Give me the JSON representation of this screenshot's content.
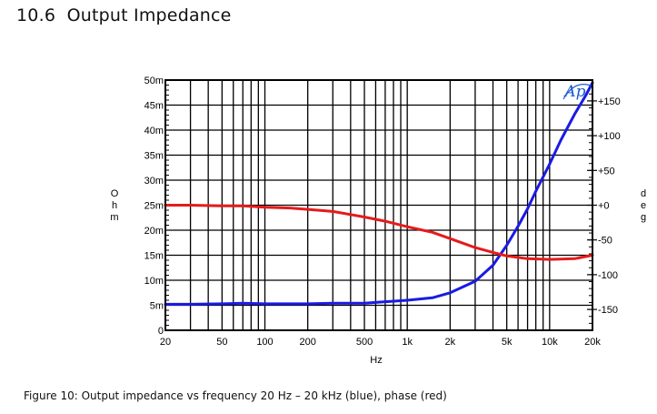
{
  "section": {
    "number": "10.6",
    "title": "Output Impedance"
  },
  "caption": "Figure 10: Output impedance vs frequency 20 Hz – 20 kHz (blue), phase (red)",
  "logo_text": "Ap",
  "chart_data": {
    "type": "line",
    "x_scale": "log",
    "xlim": [
      20,
      20000
    ],
    "xlabel": "Hz",
    "x_ticks": [
      20,
      50,
      100,
      200,
      500,
      1000,
      2000,
      5000,
      10000,
      20000
    ],
    "x_tick_labels": [
      "20",
      "50",
      "100",
      "200",
      "500",
      "1k",
      "2k",
      "5k",
      "10k",
      "20k"
    ],
    "y_left": {
      "label": "Ohm",
      "ylim": [
        0,
        0.05
      ],
      "ticks": [
        0,
        0.005,
        0.01,
        0.015,
        0.02,
        0.025,
        0.03,
        0.035,
        0.04,
        0.045,
        0.05
      ],
      "tick_labels": [
        "0",
        "5m",
        "10m",
        "15m",
        "20m",
        "25m",
        "30m",
        "35m",
        "40m",
        "45m",
        "50m"
      ]
    },
    "y_right": {
      "label": "deg",
      "ylim": [
        -180,
        180
      ],
      "ticks": [
        150,
        100,
        50,
        0,
        -50,
        -100,
        -150
      ],
      "tick_labels": [
        "+150",
        "+100",
        "+50",
        "+0",
        "-50",
        "-100",
        "-150"
      ]
    },
    "grid": true,
    "series": [
      {
        "color": "#1a1ae6",
        "axis": "left",
        "x": [
          20,
          30,
          50,
          70,
          100,
          200,
          300,
          500,
          700,
          1000,
          1500,
          2000,
          3000,
          4000,
          5000,
          6000,
          7000,
          8000,
          10000,
          12000,
          15000,
          18000,
          20000
        ],
        "y": [
          0.0052,
          0.0052,
          0.0053,
          0.0054,
          0.0053,
          0.0053,
          0.0054,
          0.0054,
          0.0057,
          0.006,
          0.0065,
          0.0075,
          0.0098,
          0.013,
          0.017,
          0.0208,
          0.0243,
          0.0278,
          0.0332,
          0.038,
          0.0432,
          0.047,
          0.0495
        ]
      },
      {
        "color": "#e61a1a",
        "axis": "right",
        "x": [
          20,
          30,
          50,
          70,
          100,
          150,
          200,
          300,
          500,
          700,
          1000,
          1500,
          2000,
          3000,
          4000,
          5000,
          7000,
          10000,
          15000,
          20000
        ],
        "y": [
          0,
          0,
          -1,
          -1,
          -3,
          -4,
          -6,
          -9,
          -17,
          -23,
          -31,
          -39,
          -48,
          -61,
          -68,
          -73,
          -77,
          -78,
          -77,
          -72
        ]
      }
    ]
  }
}
